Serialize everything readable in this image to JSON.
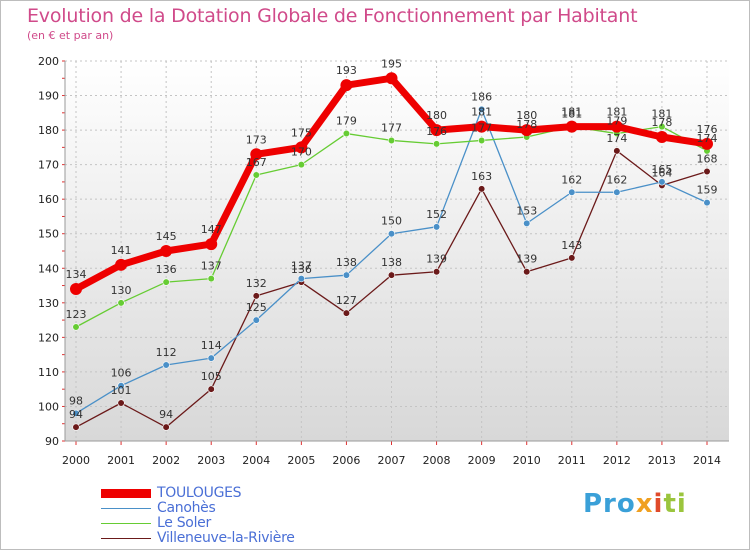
{
  "header": {
    "title": "Evolution de la Dotation Globale de Fonctionnement par Habitant",
    "subtitle": "(en € et par an)"
  },
  "logo": {
    "text": "Proxiti",
    "parts": [
      "Pro",
      "x",
      "i",
      "ti"
    ]
  },
  "colors": {
    "TOULOUGES": "#ee0000",
    "Canohès": "#4a90c8",
    "Le Soler": "#66cc33",
    "Villeneuve-la-Rivière": "#6b1a1a",
    "title": "#d04a8a",
    "legend_text": "#4a6fd6"
  },
  "chart_data": {
    "type": "line",
    "title": "Evolution de la Dotation Globale de Fonctionnement par Habitant",
    "subtitle": "(en € et par an)",
    "xlabel": "",
    "ylabel": "",
    "x": [
      2000,
      2001,
      2002,
      2003,
      2004,
      2005,
      2006,
      2007,
      2008,
      2009,
      2010,
      2011,
      2012,
      2013,
      2014
    ],
    "x_tick_labels": [
      "2000",
      "2001",
      "2002",
      "2003",
      "2004",
      "2005",
      "2006",
      "2007",
      "2008",
      "2009",
      "2010",
      "2011",
      "2012",
      "2013",
      "2014"
    ],
    "ylim": [
      90,
      200
    ],
    "y_ticks": [
      90,
      100,
      110,
      120,
      130,
      140,
      150,
      160,
      170,
      180,
      190,
      200
    ],
    "y_tick_labels": [
      "90",
      "100",
      "110",
      "120",
      "130",
      "140",
      "150",
      "160",
      "170",
      "180",
      "190",
      "200"
    ],
    "grid": true,
    "legend_position": "bottom-left",
    "series": [
      {
        "name": "Villeneuve-la-Rivière",
        "values": [
          94,
          101,
          94,
          105,
          132,
          136,
          127,
          138,
          139,
          163,
          139,
          143,
          174,
          164,
          168
        ],
        "labels": [
          "94",
          "101",
          "94",
          "105",
          "132",
          "136",
          "127",
          "138",
          "139",
          "163",
          "139",
          "143",
          "174",
          "164",
          "168"
        ]
      },
      {
        "name": "Canohès",
        "values": [
          98,
          106,
          112,
          114,
          125,
          137,
          138,
          150,
          152,
          186,
          153,
          162,
          162,
          165,
          159
        ],
        "labels": [
          "98",
          "106",
          "112",
          "114",
          "125",
          "137",
          "138",
          "150",
          "152",
          "186",
          "153",
          "162",
          "162",
          "165",
          "159"
        ]
      },
      {
        "name": "Le Soler",
        "values": [
          123,
          130,
          136,
          137,
          167,
          170,
          179,
          177,
          176,
          177,
          178,
          181,
          179,
          181,
          174
        ],
        "labels": [
          "123",
          "130",
          "136",
          "137",
          "167",
          "170",
          "179",
          "177",
          "176",
          "177",
          "178",
          "181",
          "179",
          "181",
          "174"
        ]
      },
      {
        "name": "TOULOUGES",
        "values": [
          134,
          141,
          145,
          147,
          173,
          175,
          193,
          195,
          180,
          181,
          180,
          181,
          181,
          178,
          176
        ],
        "labels": [
          "134",
          "141",
          "145",
          "147",
          "173",
          "175",
          "193",
          "195",
          "180",
          "181",
          "180",
          "181",
          "181",
          "178",
          "176"
        ]
      }
    ]
  },
  "legend": {
    "items": [
      {
        "name": "TOULOUGES"
      },
      {
        "name": "Canohès"
      },
      {
        "name": "Le Soler"
      },
      {
        "name": "Villeneuve-la-Rivière"
      }
    ]
  }
}
